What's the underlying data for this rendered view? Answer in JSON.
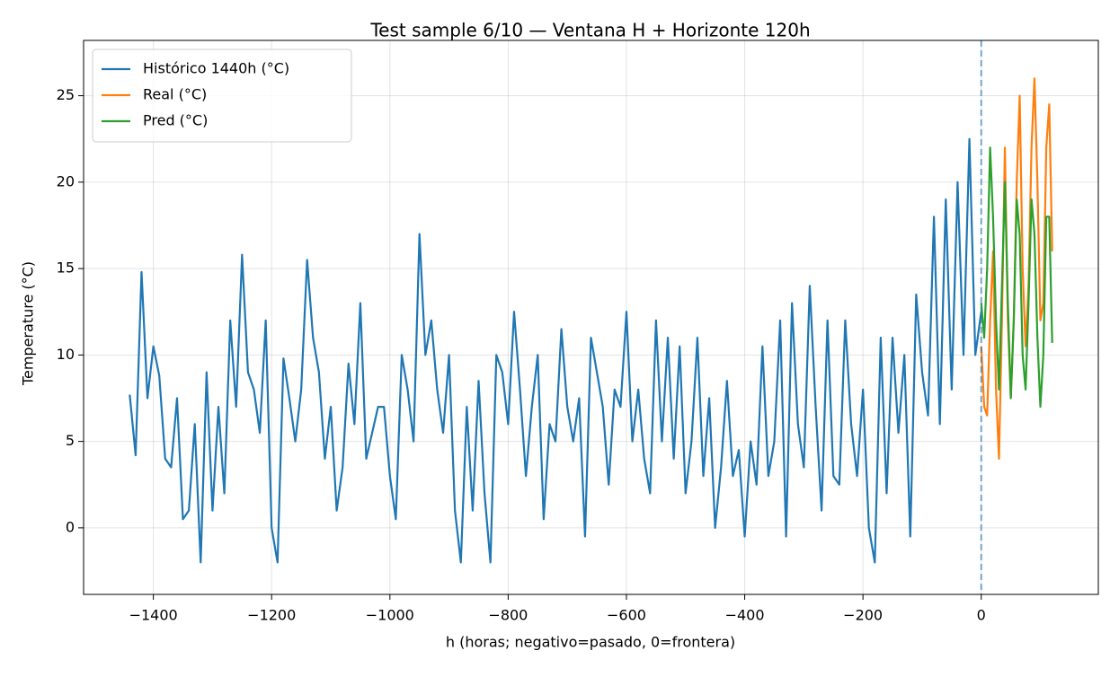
{
  "chart_data": {
    "type": "line",
    "title": "Test sample 6/10 — Ventana H + Horizonte 120h",
    "x_label": "h (horas; negativo=pasado, 0=frontera)",
    "y_label": "Temperature (°C)",
    "xlim": [
      -1518,
      198
    ],
    "ylim": [
      -3.85,
      28.2
    ],
    "xticks": [
      {
        "value": -1400,
        "label": "−1400"
      },
      {
        "value": -1200,
        "label": "−1200"
      },
      {
        "value": -1000,
        "label": "−1000"
      },
      {
        "value": -800,
        "label": "−800"
      },
      {
        "value": -600,
        "label": "−600"
      },
      {
        "value": -400,
        "label": "−400"
      },
      {
        "value": -200,
        "label": "−200"
      },
      0
    ],
    "yticks": [
      0,
      5,
      10,
      15,
      20,
      25
    ],
    "grid": true,
    "legend": "upper left",
    "vline": 0,
    "vline_color": "#1f77b4",
    "series": [
      {
        "name": "Histórico 1440h (°C)",
        "color": "#1f77b4",
        "x": [
          -1440,
          -1430,
          -1420,
          -1410,
          -1400,
          -1390,
          -1380,
          -1370,
          -1360,
          -1350,
          -1340,
          -1330,
          -1320,
          -1310,
          -1300,
          -1290,
          -1280,
          -1270,
          -1260,
          -1250,
          -1240,
          -1230,
          -1220,
          -1210,
          -1200,
          -1190,
          -1180,
          -1170,
          -1160,
          -1150,
          -1140,
          -1130,
          -1120,
          -1110,
          -1100,
          -1090,
          -1080,
          -1070,
          -1060,
          -1050,
          -1040,
          -1030,
          -1020,
          -1010,
          -1000,
          -990,
          -980,
          -970,
          -960,
          -950,
          -940,
          -930,
          -920,
          -910,
          -900,
          -890,
          -880,
          -870,
          -860,
          -850,
          -840,
          -830,
          -820,
          -810,
          -800,
          -790,
          -780,
          -770,
          -760,
          -750,
          -740,
          -730,
          -720,
          -710,
          -700,
          -690,
          -680,
          -670,
          -660,
          -650,
          -640,
          -630,
          -620,
          -610,
          -600,
          -590,
          -580,
          -570,
          -560,
          -550,
          -540,
          -530,
          -520,
          -510,
          -500,
          -490,
          -480,
          -470,
          -460,
          -450,
          -440,
          -430,
          -420,
          -410,
          -400,
          -390,
          -380,
          -370,
          -360,
          -350,
          -340,
          -330,
          -320,
          -310,
          -300,
          -290,
          -280,
          -270,
          -260,
          -250,
          -240,
          -230,
          -220,
          -210,
          -200,
          -190,
          -180,
          -170,
          -160,
          -150,
          -140,
          -130,
          -120,
          -110,
          -100,
          -90,
          -80,
          -70,
          -60,
          -50,
          -40,
          -30,
          -20,
          -10,
          0
        ],
        "values": [
          7.7,
          4.2,
          14.8,
          7.5,
          10.5,
          8.8,
          4.0,
          3.5,
          7.5,
          0.5,
          1.0,
          6.0,
          -2.0,
          9.0,
          1.0,
          7.0,
          2.0,
          12.0,
          7.0,
          15.8,
          9.0,
          8.0,
          5.5,
          12.0,
          0.0,
          -2.0,
          9.8,
          7.5,
          5.0,
          8.0,
          15.5,
          11.0,
          9.0,
          4.0,
          7.0,
          1.0,
          3.5,
          9.5,
          6.0,
          13.0,
          4.0,
          5.5,
          7.0,
          7.0,
          3.0,
          0.5,
          10.0,
          8.0,
          5.0,
          17.0,
          10.0,
          12.0,
          8.0,
          5.5,
          10.0,
          1.0,
          -2.0,
          7.0,
          1.0,
          8.5,
          2.0,
          -2.0,
          10.0,
          9.0,
          6.0,
          12.5,
          8.0,
          3.0,
          7.0,
          10.0,
          0.5,
          6.0,
          5.0,
          11.5,
          7.0,
          5.0,
          7.5,
          -0.5,
          11.0,
          9.0,
          7.0,
          2.5,
          8.0,
          7.0,
          12.5,
          5.0,
          8.0,
          4.0,
          2.0,
          12.0,
          5.0,
          11.0,
          4.0,
          10.5,
          2.0,
          5.0,
          11.0,
          3.0,
          7.5,
          0.0,
          3.5,
          8.5,
          3.0,
          4.5,
          -0.5,
          5.0,
          2.5,
          10.5,
          3.0,
          5.0,
          12.0,
          -0.5,
          13.0,
          6.0,
          3.5,
          14.0,
          7.0,
          1.0,
          12.0,
          3.0,
          2.5,
          12.0,
          6.0,
          3.0,
          8.0,
          0.0,
          -2.0,
          11.0,
          2.0,
          11.0,
          5.5,
          10.0,
          -0.5,
          13.5,
          9.0,
          6.5,
          18.0,
          6.0,
          19.0,
          8.0,
          20.0,
          10.0,
          22.5,
          10.0,
          12.5
        ]
      },
      {
        "name": "Real (°C)",
        "color": "#ff7f0e",
        "x": [
          0,
          5,
          10,
          15,
          20,
          25,
          30,
          35,
          40,
          45,
          50,
          55,
          60,
          65,
          70,
          75,
          80,
          85,
          90,
          95,
          100,
          105,
          110,
          115,
          120
        ],
        "values": [
          10.5,
          7.0,
          6.5,
          12,
          16,
          8,
          4.0,
          12,
          22,
          12,
          7.5,
          12,
          20,
          25,
          15,
          10.5,
          14,
          22,
          26,
          20,
          12,
          13,
          22,
          24.5,
          16
        ]
      },
      {
        "name": "Pred (°C)",
        "color": "#2ca02c",
        "x": [
          0,
          5,
          10,
          15,
          20,
          25,
          30,
          35,
          40,
          45,
          50,
          55,
          60,
          65,
          70,
          75,
          80,
          85,
          90,
          95,
          100,
          105,
          110,
          115,
          120
        ],
        "values": [
          13,
          11,
          15,
          22,
          18,
          12,
          8,
          14,
          20,
          13,
          7.5,
          12,
          19,
          17,
          10,
          8,
          13,
          19,
          17,
          11,
          7,
          10,
          18,
          18,
          10.7
        ]
      }
    ]
  }
}
